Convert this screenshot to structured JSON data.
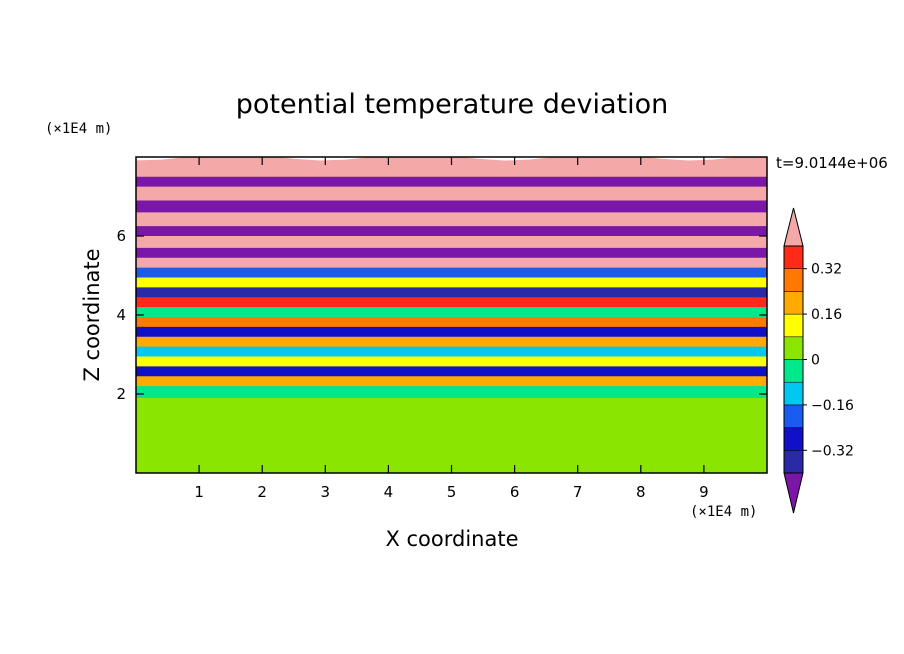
{
  "chart_data": {
    "type": "heatmap",
    "title": "potential temperature deviation",
    "xlabel": "X coordinate",
    "ylabel": "Z coordinate",
    "x_unit": "(×1E4 m)",
    "y_unit": "(×1E4 m)",
    "time_label": "t=9.0144e+06",
    "xlim": [
      0,
      10
    ],
    "ylim": [
      0,
      8
    ],
    "x_ticks": [
      1,
      2,
      3,
      4,
      5,
      6,
      7,
      8,
      9
    ],
    "y_ticks": [
      2,
      4,
      6
    ],
    "colorbar": {
      "levels": [
        -0.48,
        -0.4,
        -0.32,
        -0.24,
        -0.16,
        -0.08,
        0,
        0.08,
        0.16,
        0.24,
        0.32,
        0.4,
        0.48
      ],
      "labels": [
        "0.32",
        "0.16",
        "0",
        "−0.16",
        "−0.32"
      ],
      "label_values": [
        0.32,
        0.16,
        0,
        -0.16,
        -0.32
      ],
      "colors": [
        "#7a16a8",
        "#2a2aa8",
        "#1010c8",
        "#1a5cf0",
        "#00c8f0",
        "#00e88c",
        "#8ae600",
        "#ffff00",
        "#ffaa00",
        "#ff7800",
        "#ff2a18",
        "#f5a8a8"
      ]
    },
    "field_layers": [
      {
        "z": [
          0.0,
          1.55
        ],
        "value": 0.02
      },
      {
        "z": [
          1.55,
          2.0
        ],
        "value": 0.0
      },
      {
        "z": [
          2.0,
          2.3
        ],
        "value": -0.06
      },
      {
        "z": [
          2.3,
          2.55
        ],
        "value": 0.22
      },
      {
        "z": [
          2.55,
          2.8
        ],
        "value": -0.3
      },
      {
        "z": [
          2.8,
          3.05
        ],
        "value": 0.1
      },
      {
        "z": [
          3.05,
          3.3
        ],
        "value": -0.12
      },
      {
        "z": [
          3.3,
          3.55
        ],
        "value": 0.18
      },
      {
        "z": [
          3.55,
          3.8
        ],
        "value": -0.25
      },
      {
        "z": [
          3.8,
          4.05
        ],
        "value": 0.3
      },
      {
        "z": [
          4.05,
          4.3
        ],
        "value": -0.04
      },
      {
        "z": [
          4.3,
          4.55
        ],
        "value": 0.36
      },
      {
        "z": [
          4.55,
          4.8
        ],
        "value": -0.36
      },
      {
        "z": [
          4.8,
          5.05
        ],
        "value": 0.14
      },
      {
        "z": [
          5.05,
          5.3
        ],
        "value": -0.18
      },
      {
        "z": [
          5.3,
          5.55
        ],
        "value": 0.42
      },
      {
        "z": [
          5.55,
          5.8
        ],
        "value": -0.44
      },
      {
        "z": [
          5.8,
          6.1
        ],
        "value": 0.46
      },
      {
        "z": [
          6.1,
          6.35
        ],
        "value": -0.46
      },
      {
        "z": [
          6.35,
          6.7
        ],
        "value": 0.48
      },
      {
        "z": [
          6.7,
          7.0
        ],
        "value": -0.48
      },
      {
        "z": [
          7.0,
          7.35
        ],
        "value": 0.48
      },
      {
        "z": [
          7.35,
          7.6
        ],
        "value": -0.48
      },
      {
        "z": [
          7.6,
          8.0
        ],
        "value": 0.48
      }
    ]
  }
}
